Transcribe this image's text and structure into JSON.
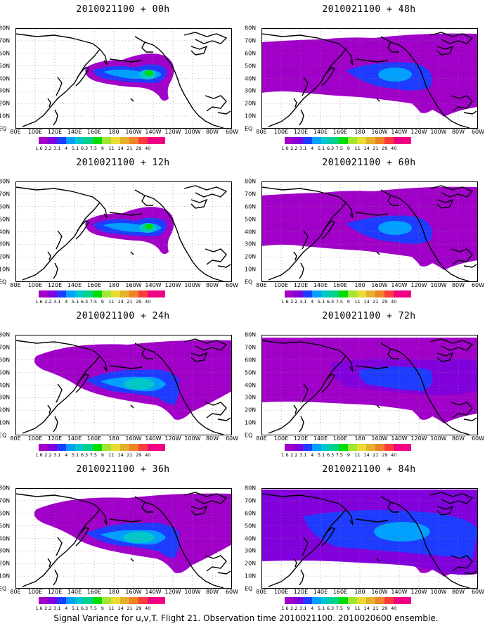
{
  "colorbar": {
    "labels": [
      "1.6",
      "2.2",
      "3.1",
      "4",
      "5.1",
      "6.3",
      "7.5",
      "9",
      "11",
      "14",
      "21",
      "29",
      "40"
    ],
    "colors": [
      "#a000c8",
      "#8200dc",
      "#1e3cff",
      "#00a0ff",
      "#00c8c8",
      "#00d28c",
      "#00dc00",
      "#a0e632",
      "#e6dc32",
      "#e6af2d",
      "#f08228",
      "#fa3c3c",
      "#f00082"
    ]
  },
  "axes": {
    "lat_labels": [
      "80N",
      "70N",
      "60N",
      "50N",
      "40N",
      "30N",
      "20N",
      "10N",
      "EQ"
    ],
    "lon_labels": [
      "80E",
      "100E",
      "120E",
      "140E",
      "160E",
      "180",
      "160W",
      "140W",
      "120W",
      "100W",
      "80W",
      "60W"
    ]
  },
  "panels": [
    {
      "title": "2010021100 + 00h",
      "lead_hours": 0,
      "level": 2
    },
    {
      "title": "2010021100 + 48h",
      "lead_hours": 48,
      "level": 4
    },
    {
      "title": "2010021100 + 12h",
      "lead_hours": 12,
      "level": 2
    },
    {
      "title": "2010021100 + 60h",
      "lead_hours": 60,
      "level": 4
    },
    {
      "title": "2010021100 + 24h",
      "lead_hours": 24,
      "level": 3
    },
    {
      "title": "2010021100 + 72h",
      "lead_hours": 72,
      "level": 5
    },
    {
      "title": "2010021100 + 36h",
      "lead_hours": 36,
      "level": 3
    },
    {
      "title": "2010021100 + 84h",
      "lead_hours": 84,
      "level": 6
    }
  ],
  "footer": "Signal Variance for u,v,T. Flight 21. Observation time 2010021100. 2010020600 ensemble."
}
